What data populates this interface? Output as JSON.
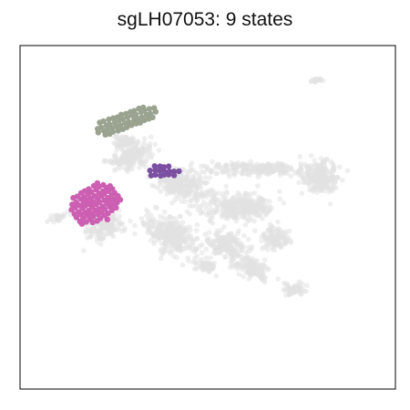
{
  "chart_data": {
    "type": "scatter",
    "title": "sgLH07053: 9 states",
    "xlabel": "",
    "ylabel": "",
    "grid": false,
    "xlim": [
      0,
      100
    ],
    "ylim": [
      0,
      100
    ],
    "background_color": "#e2e2e2",
    "series": [
      {
        "color": "#9aa38f",
        "cx": 28,
        "cy": 78,
        "rx": 9,
        "ry": 3,
        "rot": 22
      },
      {
        "color": "#7b4fa1",
        "cx": 38,
        "cy": 63,
        "rx": 4.5,
        "ry": 2.0,
        "rot": 0
      },
      {
        "color": "#cc5fb1",
        "cx": 20,
        "cy": 54,
        "rx": 7.5,
        "ry": 5.5,
        "rot": 35
      }
    ]
  }
}
